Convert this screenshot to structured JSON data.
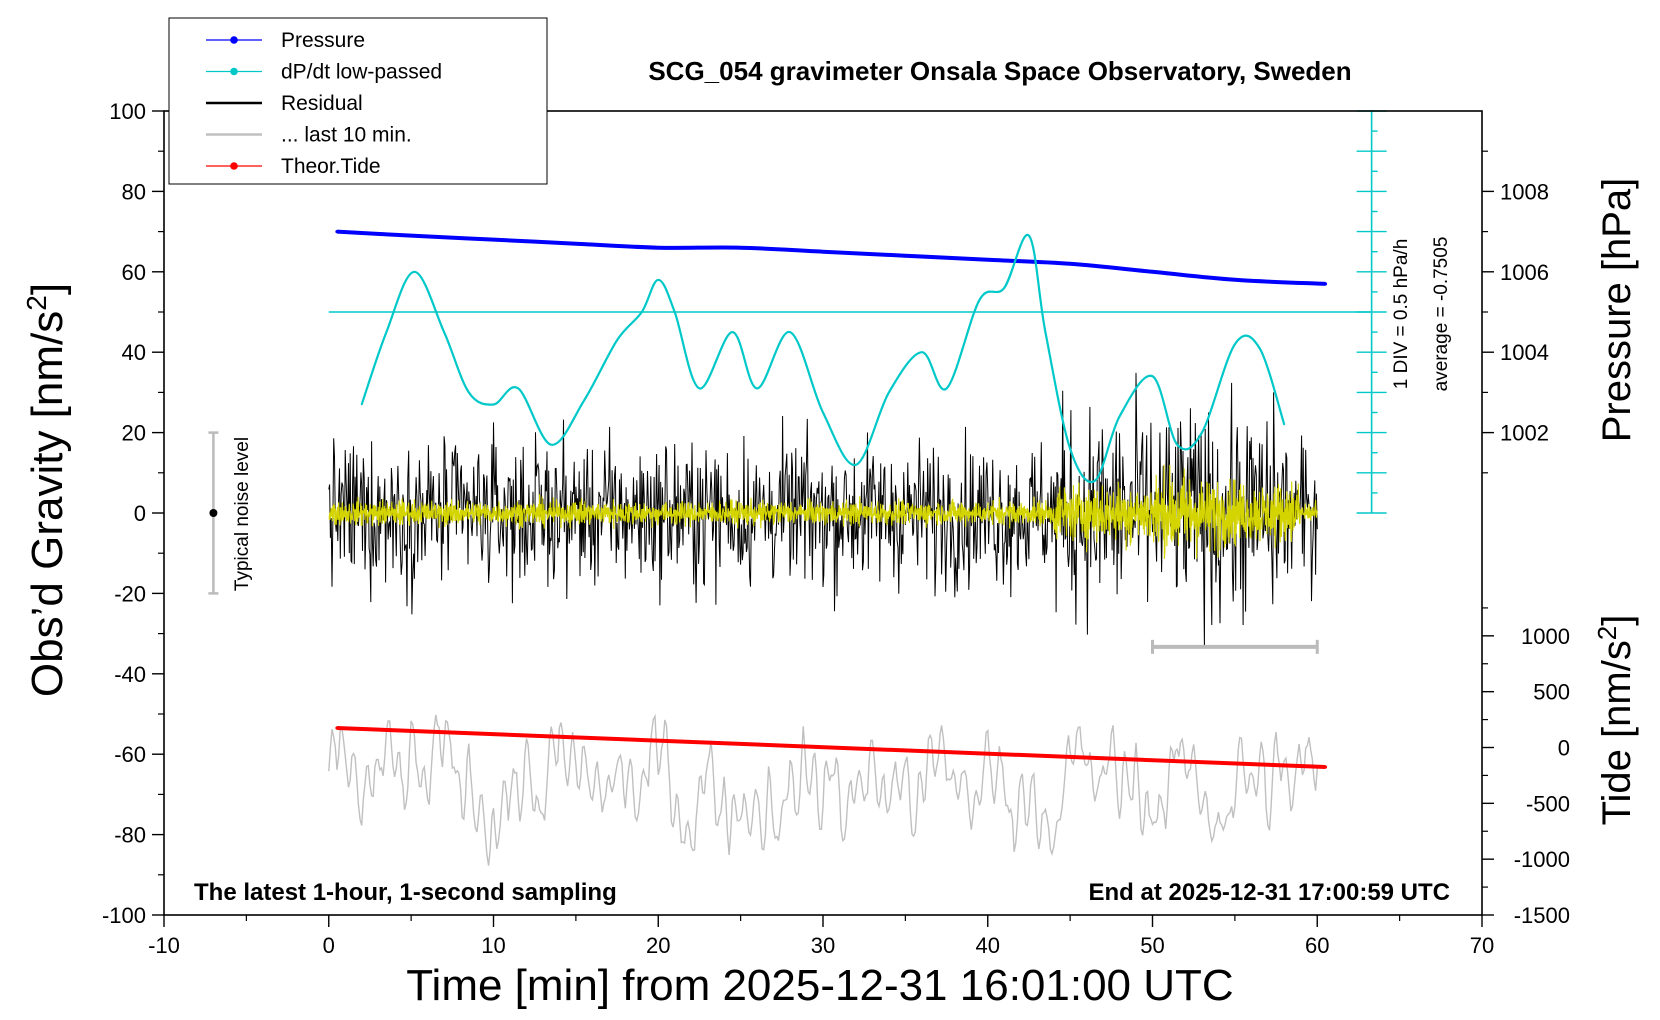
{
  "chart_data": {
    "type": "line",
    "title": "SCG_054 gravimeter Onsala Space Observatory, Sweden",
    "xlabel": "Time [min] from 2025-12-31 16:01:00 UTC",
    "xlim": [
      -10,
      70
    ],
    "x_ticks": [
      "-10",
      "0",
      "10",
      "20",
      "30",
      "40",
      "50",
      "60",
      "70"
    ],
    "ylabel_left": "Obs’d Gravity [nm/s",
    "ylabel_left_sup": "2",
    "ylabel_left_end": "]",
    "ylim_left": [
      -100,
      100
    ],
    "y_ticks_left": [
      "100",
      "80",
      "60",
      "40",
      "20",
      "0",
      "-20",
      "-40",
      "-60",
      "-80",
      "-100"
    ],
    "ylabel_pressure": "Pressure [hPa]",
    "pressure_range": [
      1000,
      1010
    ],
    "pressure_ticks": [
      "1008",
      "1006",
      "1004",
      "1002"
    ],
    "ylabel_tide": "Tide [nm/s",
    "ylabel_tide_sup": "2",
    "ylabel_tide_end": "]",
    "tide_range": [
      -1500,
      1500
    ],
    "tide_ticks": [
      "1000",
      "500",
      "0",
      "-500",
      "-1000",
      "-1500"
    ],
    "legend": [
      {
        "label": "Pressure",
        "color": "#0000ff",
        "marker": "dot"
      },
      {
        "label": "dP/dt low-passed",
        "color": "#00c8c8",
        "marker": "dot"
      },
      {
        "label": "Residual",
        "color": "#000000",
        "marker": "none"
      },
      {
        "label": "... last 10 min.",
        "color": "#c0c0c0",
        "marker": "none"
      },
      {
        "label": "Theor.Tide",
        "color": "#ff0000",
        "marker": "dot"
      }
    ],
    "legend_position": "top-left",
    "footer_left": "The latest 1-hour, 1-second sampling",
    "footer_right": "End at 2025-12-31 17:00:59 UTC",
    "noise_label": "Typical noise level",
    "noise_range": [
      -20,
      20
    ],
    "dpdt_scale_label": "1 DIV = 0.5 hPa/h",
    "dpdt_average_label": "average = -0.7505",
    "dpdt_zero_level": 50,
    "series": [
      {
        "name": "Pressure",
        "axis": "pressure",
        "color": "#0000ff",
        "x": [
          0.5,
          5,
          10,
          15,
          20,
          25,
          30,
          35,
          40,
          45,
          50,
          55,
          60.5
        ],
        "values": [
          1007.0,
          1006.9,
          1006.8,
          1006.7,
          1006.6,
          1006.6,
          1006.5,
          1006.4,
          1006.3,
          1006.2,
          1006.0,
          1005.8,
          1005.7
        ]
      },
      {
        "name": "dP/dt low-passed",
        "axis": "left",
        "color": "#00c8c8",
        "x": [
          2,
          3.5,
          5.2,
          7,
          8.5,
          10,
          11.5,
          13.5,
          15.5,
          17.5,
          19,
          20,
          21,
          22.5,
          24.5,
          26,
          28,
          30,
          32,
          34,
          36,
          37.5,
          39.5,
          41,
          42.5,
          43.5,
          45,
          46.5,
          48,
          50,
          51.5,
          53,
          55,
          56.5,
          58
        ],
        "values": [
          27,
          45,
          60,
          45,
          30,
          27,
          31,
          17,
          28,
          43,
          50,
          58,
          50,
          31,
          45,
          31,
          45,
          25,
          12,
          30,
          40,
          31,
          53,
          56,
          69,
          45,
          16,
          8,
          24,
          34,
          17,
          20,
          42,
          41,
          22
        ]
      },
      {
        "name": "Theor.Tide",
        "axis": "tide",
        "color": "#ff0000",
        "x": [
          0.5,
          60.5
        ],
        "values": [
          175,
          -175
        ]
      }
    ]
  }
}
